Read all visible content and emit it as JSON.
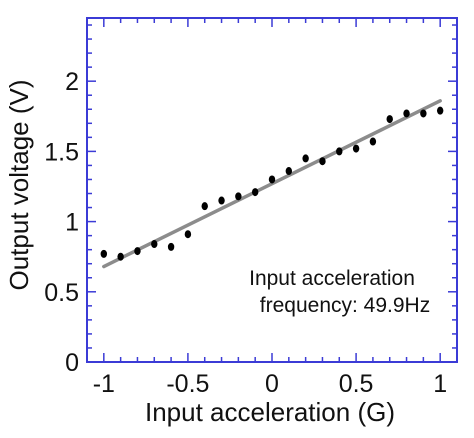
{
  "chart_data": {
    "type": "scatter",
    "xlabel": "Input acceleration (G)",
    "ylabel": "Output voltage (V)",
    "xlim": [
      -1.1,
      1.1
    ],
    "ylim": [
      0,
      2.45
    ],
    "x_ticks": [
      -1,
      -0.5,
      0,
      0.5,
      1
    ],
    "x_tick_labels": [
      "-1",
      "-0.5",
      "0",
      "0.5",
      "1"
    ],
    "y_ticks": [
      0,
      0.5,
      1,
      1.5,
      2
    ],
    "y_tick_labels": [
      "0",
      "0.5",
      "1",
      "1.5",
      "2"
    ],
    "annotation": [
      "Input acceleration",
      "frequency: 49.9Hz"
    ],
    "grid": false,
    "colors": {
      "points": "#000000",
      "fit_line": "#8c8c8c",
      "axes": "#3b3bd6"
    },
    "series": [
      {
        "values": [
          {
            "x": -1.0,
            "y": 0.77
          },
          {
            "x": -0.9,
            "y": 0.75
          },
          {
            "x": -0.8,
            "y": 0.79
          },
          {
            "x": -0.7,
            "y": 0.84
          },
          {
            "x": -0.6,
            "y": 0.82
          },
          {
            "x": -0.5,
            "y": 0.91
          },
          {
            "x": -0.4,
            "y": 1.11
          },
          {
            "x": -0.3,
            "y": 1.15
          },
          {
            "x": -0.2,
            "y": 1.18
          },
          {
            "x": -0.1,
            "y": 1.21
          },
          {
            "x": 0.0,
            "y": 1.3
          },
          {
            "x": 0.1,
            "y": 1.36
          },
          {
            "x": 0.2,
            "y": 1.45
          },
          {
            "x": 0.3,
            "y": 1.43
          },
          {
            "x": 0.4,
            "y": 1.5
          },
          {
            "x": 0.5,
            "y": 1.52
          },
          {
            "x": 0.6,
            "y": 1.57
          },
          {
            "x": 0.7,
            "y": 1.73
          },
          {
            "x": 0.8,
            "y": 1.77
          },
          {
            "x": 0.9,
            "y": 1.77
          },
          {
            "x": 1.0,
            "y": 1.79
          }
        ]
      }
    ],
    "fit_line": {
      "x": [
        -1.0,
        1.0
      ],
      "y": [
        0.68,
        1.86
      ]
    }
  }
}
